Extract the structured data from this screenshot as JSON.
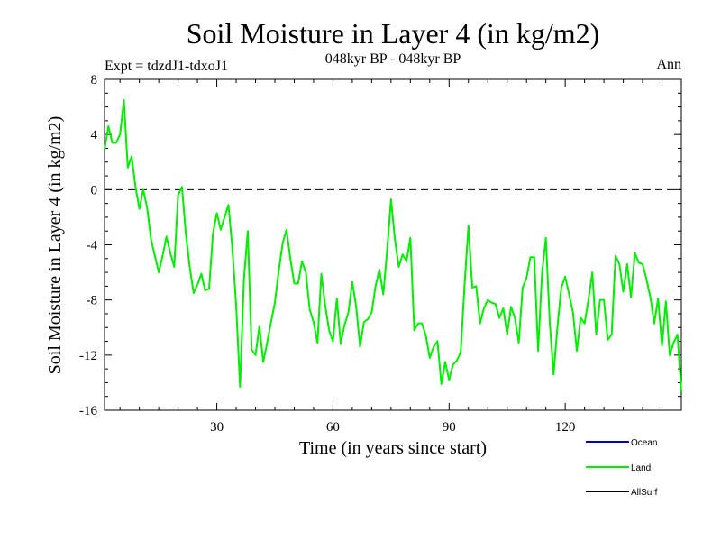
{
  "chart_data": {
    "type": "line",
    "title": "Soil Moisture in Layer 4 (in kg/m2)",
    "subtitle": "048kyr BP - 048kyr BP",
    "experiment_label": "Expt = tdzdJ1-tdxoJ1",
    "season_label": "Ann",
    "xlabel": "Time (in years since start)",
    "ylabel": "Soil Moisture in Layer 4 (in kg/m2)",
    "xlim": [
      1,
      150
    ],
    "ylim": [
      -16,
      8
    ],
    "x_ticks": [
      30,
      60,
      90,
      120
    ],
    "y_ticks": [
      8,
      4,
      0,
      -4,
      -8,
      -12,
      -16
    ],
    "zero_line": true,
    "legend": [
      {
        "name": "Ocean",
        "color": "#0000cc"
      },
      {
        "name": "Land",
        "color": "#00ee00"
      },
      {
        "name": "AllSurf",
        "color": "#000000"
      }
    ],
    "series": [
      {
        "name": "Land",
        "color": "#00ee00",
        "x_start": 1,
        "values": [
          2.9,
          4.6,
          3.4,
          3.4,
          4.0,
          6.5,
          1.6,
          2.4,
          0.2,
          -1.4,
          0.0,
          -1.3,
          -3.6,
          -4.8,
          -6.0,
          -4.8,
          -3.4,
          -4.6,
          -5.6,
          -0.4,
          0.2,
          -3.2,
          -5.6,
          -7.5,
          -6.9,
          -6.1,
          -7.3,
          -7.2,
          -3.2,
          -1.7,
          -2.9,
          -2.0,
          -1.1,
          -4.2,
          -8.4,
          -14.3,
          -6.5,
          -3.0,
          -11.6,
          -12.0,
          -9.9,
          -12.5,
          -11.1,
          -9.6,
          -8.2,
          -5.9,
          -3.9,
          -2.9,
          -5.0,
          -6.8,
          -6.8,
          -5.2,
          -6.0,
          -8.7,
          -9.6,
          -11.1,
          -6.1,
          -8.4,
          -10.2,
          -11.0,
          -7.9,
          -11.2,
          -9.8,
          -8.9,
          -6.7,
          -8.5,
          -11.4,
          -9.6,
          -9.4,
          -8.9,
          -7.0,
          -5.8,
          -7.6,
          -4.4,
          -0.7,
          -3.6,
          -5.6,
          -4.7,
          -5.2,
          -3.5,
          -10.2,
          -9.7,
          -9.7,
          -10.6,
          -12.2,
          -11.4,
          -11.0,
          -14.1,
          -12.5,
          -13.8,
          -12.7,
          -12.4,
          -11.8,
          -6.9,
          -2.6,
          -7.1,
          -7.0,
          -9.7,
          -8.6,
          -8.0,
          -8.2,
          -8.3,
          -9.3,
          -8.6,
          -10.5,
          -8.5,
          -9.3,
          -11.1,
          -7.1,
          -6.4,
          -4.9,
          -4.9,
          -11.7,
          -6.1,
          -3.5,
          -9.6,
          -13.4,
          -9.9,
          -7.1,
          -6.3,
          -7.6,
          -8.9,
          -11.7,
          -9.3,
          -9.7,
          -8.0,
          -6.0,
          -10.5,
          -8.0,
          -8.0,
          -10.9,
          -10.5,
          -4.8,
          -5.4,
          -7.4,
          -5.4,
          -7.8,
          -4.6,
          -5.3,
          -5.4,
          -6.5,
          -7.8,
          -9.7,
          -7.9,
          -11.3,
          -8.1,
          -12.0,
          -11.1,
          -10.5,
          -14.7
        ]
      }
    ]
  }
}
